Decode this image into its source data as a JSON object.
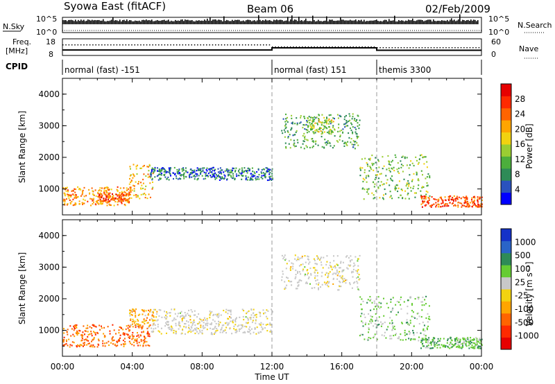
{
  "header": {
    "station": "Syowa East (fitACF)",
    "beam": "Beam 06",
    "date": "02/Feb/2009"
  },
  "top_panels": {
    "nsky_label": "N.Sky",
    "nsearch_label": "N.Search",
    "noise_ticks_left": [
      "10^5",
      "10^0"
    ],
    "noise_ticks_right": [
      "10^5",
      "10^0"
    ],
    "freq_label_1": "Freq.",
    "freq_label_2": "[MHz]",
    "freq_ticks": [
      "18",
      "8"
    ],
    "nave_ticks": [
      "60",
      "0"
    ],
    "nave_label": "Nave",
    "cpid_label": "CPID",
    "cpid_segments": [
      {
        "label": "normal (fast) -151",
        "start_h": 0,
        "end_h": 12
      },
      {
        "label": "normal (fast) 151",
        "start_h": 12,
        "end_h": 18
      },
      {
        "label": "themis 3300",
        "start_h": 18,
        "end_h": 24
      }
    ],
    "freq_mhz": [
      {
        "start_h": 0,
        "end_h": 12,
        "value": 11.3
      },
      {
        "start_h": 12,
        "end_h": 18,
        "value": 12.6
      },
      {
        "start_h": 18,
        "end_h": 24,
        "value": 11.1
      }
    ]
  },
  "x_axis": {
    "label": "Time UT",
    "ticks": [
      "00:00",
      "04:00",
      "08:00",
      "12:00",
      "16:00",
      "20:00",
      "00:00"
    ],
    "tick_hours": [
      0,
      4,
      8,
      12,
      16,
      20,
      24
    ]
  },
  "power_panel": {
    "ylabel": "Slant Range [km]",
    "yticks": [
      "4000",
      "3000",
      "2000",
      "1000"
    ],
    "cbar_label": "Power [dB]",
    "cbar_ticks": [
      "28",
      "24",
      "20",
      "16",
      "12",
      "8",
      "4"
    ]
  },
  "velocity_panel": {
    "ylabel": "Slant Range [km]",
    "yticks": [
      "4000",
      "3000",
      "2000",
      "1000"
    ],
    "cbar_label": "Velocity [m s⁻¹]",
    "cbar_ticks": [
      "1000",
      "500",
      "100",
      "25",
      "-25",
      "-100",
      "-500",
      "-1000"
    ]
  },
  "colors": {
    "power_scale": [
      "#0000ff",
      "#2a52be",
      "#2e8b57",
      "#4cae3c",
      "#9acd32",
      "#f2d210",
      "#ffa500",
      "#ff6400",
      "#ff2a00",
      "#e60000"
    ],
    "velocity_scale": [
      "#1432c8",
      "#2a64c8",
      "#2e8b57",
      "#66cc33",
      "#c8c8c8",
      "#f2d210",
      "#ffa500",
      "#ff6400",
      "#ff2a00",
      "#e60000"
    ],
    "ground_scatter": "#c8c8c8"
  },
  "chart_data": [
    {
      "type": "heatmap",
      "title": "Power",
      "xlabel": "Time UT",
      "ylabel": "Slant Range [km]",
      "xlim_hours": [
        0,
        24
      ],
      "ylim_km": [
        180,
        4500
      ],
      "colorbar": {
        "label": "Power [dB]",
        "range": [
          0,
          30
        ],
        "ticks": [
          4,
          8,
          12,
          16,
          20,
          24,
          28
        ]
      },
      "echo_regions": [
        {
          "t": [
            0.0,
            4.0
          ],
          "range_km": [
            500,
            1100
          ],
          "value_db": 20
        },
        {
          "t": [
            2.0,
            3.8
          ],
          "range_km": [
            600,
            900
          ],
          "value_db": 24
        },
        {
          "t": [
            3.8,
            5.2
          ],
          "range_km": [
            700,
            1800
          ],
          "value_db": 18
        },
        {
          "t": [
            5.0,
            12.0
          ],
          "range_km": [
            1300,
            1700
          ],
          "value_db": 6
        },
        {
          "t": [
            12.5,
            17.0
          ],
          "range_km": [
            2300,
            3400
          ],
          "value_db": 10
        },
        {
          "t": [
            14.0,
            15.5
          ],
          "range_km": [
            2800,
            3300
          ],
          "value_db": 14
        },
        {
          "t": [
            17.0,
            21.0
          ],
          "range_km": [
            700,
            2100
          ],
          "value_db": 12
        },
        {
          "t": [
            20.5,
            24.0
          ],
          "range_km": [
            450,
            800
          ],
          "value_db": 24
        }
      ]
    },
    {
      "type": "heatmap",
      "title": "Velocity",
      "xlabel": "Time UT",
      "ylabel": "Slant Range [km]",
      "xlim_hours": [
        0,
        24
      ],
      "ylim_km": [
        180,
        4500
      ],
      "colorbar": {
        "label": "Velocity [m s⁻¹]",
        "ticks": [
          1000,
          500,
          100,
          25,
          -25,
          -100,
          -500,
          -1000
        ]
      },
      "echo_regions": [
        {
          "t": [
            0.0,
            5.0
          ],
          "range_km": [
            500,
            1200
          ],
          "value_ms": -300
        },
        {
          "t": [
            3.8,
            5.2
          ],
          "range_km": [
            1100,
            1700
          ],
          "value_ms": -150
        },
        {
          "t": [
            5.0,
            12.0
          ],
          "range_km": [
            900,
            1700
          ],
          "value_ms": 0
        },
        {
          "t": [
            12.5,
            17.0
          ],
          "range_km": [
            2300,
            3400
          ],
          "value_ms": 0
        },
        {
          "t": [
            17.0,
            21.0
          ],
          "range_km": [
            700,
            2100
          ],
          "value_ms": 150
        },
        {
          "t": [
            20.5,
            24.0
          ],
          "range_km": [
            450,
            800
          ],
          "value_ms": 200
        }
      ]
    }
  ]
}
